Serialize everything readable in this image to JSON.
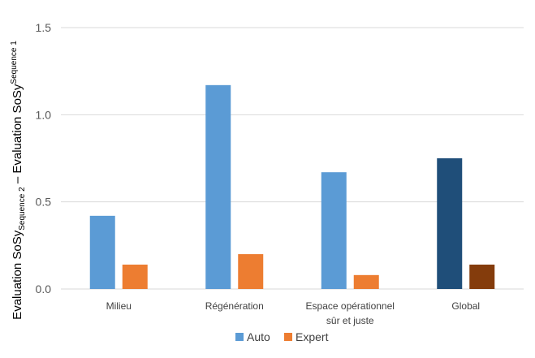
{
  "chart_data": {
    "type": "bar",
    "categories": [
      [
        "Milieu"
      ],
      [
        "Régénération"
      ],
      [
        "Espace opérationnel",
        "sûr et juste"
      ],
      [
        "Global"
      ]
    ],
    "series": [
      {
        "name": "Auto",
        "values": [
          0.42,
          1.17,
          0.67,
          0.75
        ],
        "colors": [
          "#5B9BD5",
          "#5B9BD5",
          "#5B9BD5",
          "#1F4E79"
        ]
      },
      {
        "name": "Expert",
        "values": [
          0.14,
          0.2,
          0.08,
          0.14
        ],
        "colors": [
          "#ED7D31",
          "#ED7D31",
          "#ED7D31",
          "#843C0C"
        ]
      }
    ],
    "legend_colors": [
      "#5B9BD5",
      "#ED7D31"
    ],
    "ylim": [
      0,
      1.5
    ],
    "yticks": [
      "0.0",
      "0.5",
      "1.0",
      "1.5"
    ],
    "ylabel": {
      "main_a": "Evaluation SoSy",
      "sub_a": "Sequence 2",
      "dash": " – ",
      "main_b": "Evaluation SoSy",
      "sub_b": "Sequence 1"
    },
    "grid": true,
    "legend_position": "bottom"
  }
}
